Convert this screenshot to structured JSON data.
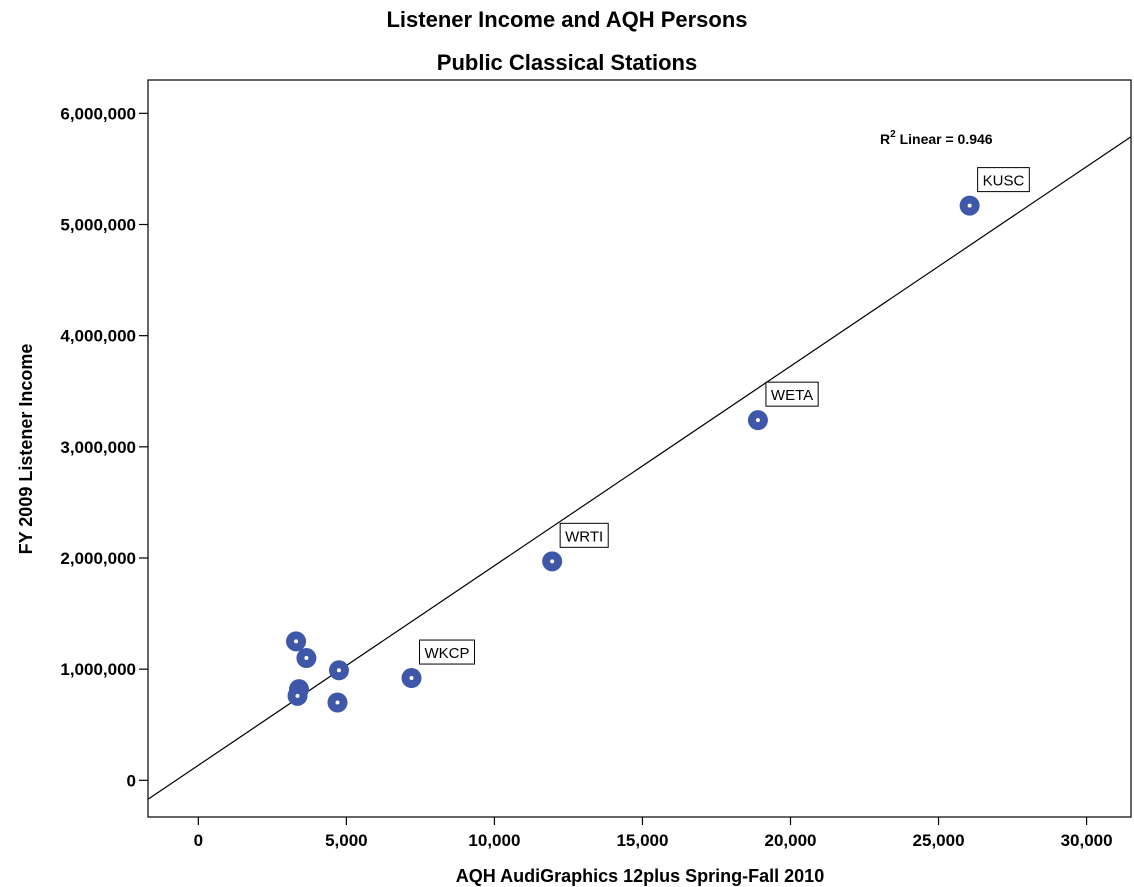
{
  "chart_data": {
    "type": "scatter",
    "title": "Listener Income and AQH Persons",
    "subtitle": "Public Classical Stations",
    "xlabel": "AQH AudiGraphics 12plus Spring-Fall 2010",
    "ylabel": "FY 2009 Listener Income",
    "xlim": [
      -1700,
      31500
    ],
    "ylim": [
      -330000,
      6300000
    ],
    "x_ticks": [
      0,
      5000,
      10000,
      15000,
      20000,
      25000,
      30000
    ],
    "x_tick_labels": [
      "0",
      "5,000",
      "10,000",
      "15,000",
      "20,000",
      "25,000",
      "30,000"
    ],
    "y_ticks": [
      0,
      1000000,
      2000000,
      3000000,
      4000000,
      5000000,
      6000000
    ],
    "y_tick_labels": [
      "0",
      "1,000,000",
      "2,000,000",
      "3,000,000",
      "4,000,000",
      "5,000,000",
      "6,000,000"
    ],
    "grid": false,
    "point_color": "#3F57A8",
    "points": [
      {
        "x": 3300,
        "y": 1250000,
        "label": ""
      },
      {
        "x": 3650,
        "y": 1100000,
        "label": ""
      },
      {
        "x": 4750,
        "y": 990000,
        "label": ""
      },
      {
        "x": 3400,
        "y": 820000,
        "label": ""
      },
      {
        "x": 3350,
        "y": 760000,
        "label": ""
      },
      {
        "x": 4700,
        "y": 700000,
        "label": ""
      },
      {
        "x": 7200,
        "y": 920000,
        "label": "WKCP"
      },
      {
        "x": 11950,
        "y": 1970000,
        "label": "WRTI"
      },
      {
        "x": 18900,
        "y": 3240000,
        "label": "WETA"
      },
      {
        "x": 26050,
        "y": 5170000,
        "label": "KUSC"
      }
    ],
    "fit_line": {
      "type": "linear",
      "r2_label": "R",
      "r2_superscript": "2",
      "r2_text": " Linear = 0.946",
      "x_range": [
        -1700,
        31500
      ],
      "y_range": [
        -170000,
        5790000
      ]
    }
  }
}
